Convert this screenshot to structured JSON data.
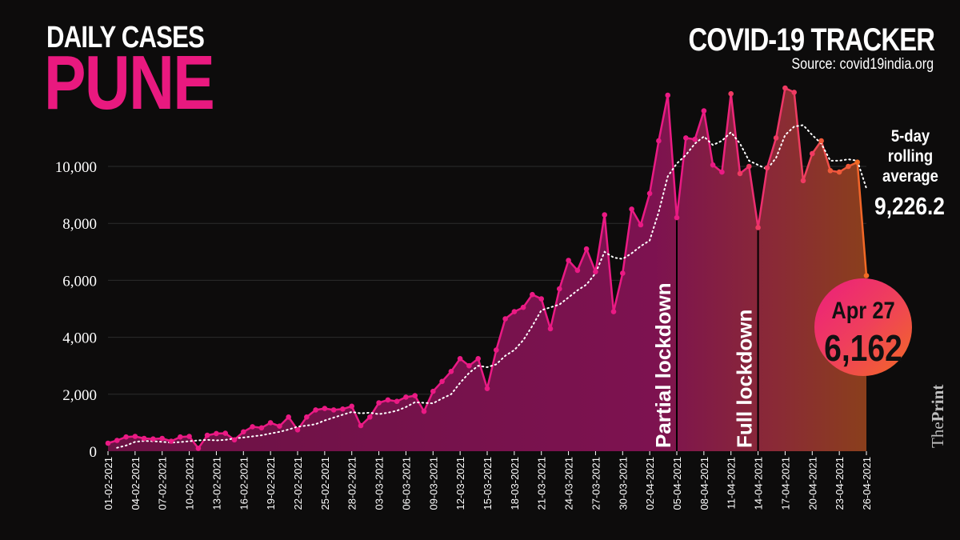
{
  "header": {
    "subtitle": "DAILY CASES",
    "city": "PUNE",
    "tracker": "COVID-19 TRACKER",
    "source": "Source: covid19india.org"
  },
  "rolling": {
    "label": "5-day\nrolling\naverage",
    "value": "9,226.2"
  },
  "callout": {
    "date": "Apr 27",
    "value": "6,162"
  },
  "brand": {
    "the": "The",
    "print": "Print"
  },
  "colors": {
    "background": "#0d0c0c",
    "accent_pink": "#e9197f",
    "accent_orange": "#f26a23",
    "area_fill": "#7a1249",
    "grid": "#2c2c2c"
  },
  "chart_data": {
    "type": "line",
    "ylim": [
      0,
      12000
    ],
    "yticks": [
      0,
      2000,
      4000,
      6000,
      8000,
      10000
    ],
    "ytick_labels": [
      "0",
      "2,000",
      "4,000",
      "6,000",
      "8,000",
      "10,000"
    ],
    "xtick_labels": [
      "01-02-2021",
      "04-02-2021",
      "07-02-2021",
      "10-02-2021",
      "13-02-2021",
      "16-02-2021",
      "19-02-2021",
      "22-02-2021",
      "25-02-2021",
      "28-02-2021",
      "03-03-2021",
      "06-03-2021",
      "09-03-2021",
      "12-03-2021",
      "15-03-2021",
      "18-03-2021",
      "21-03-2021",
      "24-03-2021",
      "27-03-2021",
      "30-03-2021",
      "02-04-2021",
      "05-04-2021",
      "08-04-2021",
      "11-04-2021",
      "14-04-2021",
      "17-04-2021",
      "20-04-2021",
      "23-04-2021",
      "26-04-2021"
    ],
    "grid": true,
    "series": [
      {
        "name": "Daily cases",
        "values": [
          280,
          380,
          500,
          520,
          450,
          430,
          450,
          350,
          500,
          520,
          100,
          560,
          620,
          630,
          400,
          680,
          860,
          820,
          1000,
          880,
          1200,
          750,
          1200,
          1450,
          1500,
          1450,
          1480,
          1580,
          900,
          1200,
          1700,
          1800,
          1750,
          1900,
          1950,
          1400,
          2100,
          2450,
          2800,
          3250,
          3000,
          3250,
          2200,
          3550,
          4650,
          4900,
          5050,
          5500,
          5350,
          4300,
          5700,
          6700,
          6350,
          7100,
          6300,
          8300,
          4900,
          6250,
          8500,
          7950,
          9050,
          10900,
          12500,
          8200,
          11000,
          10950,
          11950,
          10050,
          9800,
          12550,
          9750,
          10000,
          7850,
          9950,
          11000,
          12750,
          12600,
          9500,
          10450,
          10900,
          9850,
          9800,
          10000,
          10150,
          6162
        ]
      },
      {
        "name": "5-day rolling average",
        "values": [
          null,
          120,
          200,
          330,
          360,
          350,
          330,
          300,
          320,
          350,
          380,
          400,
          380,
          400,
          450,
          480,
          520,
          560,
          620,
          680,
          760,
          860,
          900,
          950,
          1080,
          1180,
          1280,
          1380,
          1330,
          1350,
          1300,
          1350,
          1420,
          1550,
          1720,
          1700,
          1680,
          1850,
          2000,
          2400,
          2750,
          3000,
          2950,
          3050,
          3350,
          3550,
          3900,
          4400,
          4950,
          5050,
          5150,
          5400,
          5650,
          5850,
          6250,
          7000,
          6800,
          6750,
          6950,
          7200,
          7400,
          8400,
          9650,
          10100,
          10400,
          10800,
          11050,
          10750,
          10900,
          11200,
          10800,
          10200,
          10050,
          9900,
          10300,
          11100,
          11400,
          11450,
          11100,
          10800,
          10200,
          10200,
          10250,
          10200,
          9226.2
        ]
      }
    ],
    "annotations": [
      {
        "label": "Partial lockdown",
        "index": 63
      },
      {
        "label": "Full lockdown",
        "index": 72
      }
    ]
  }
}
